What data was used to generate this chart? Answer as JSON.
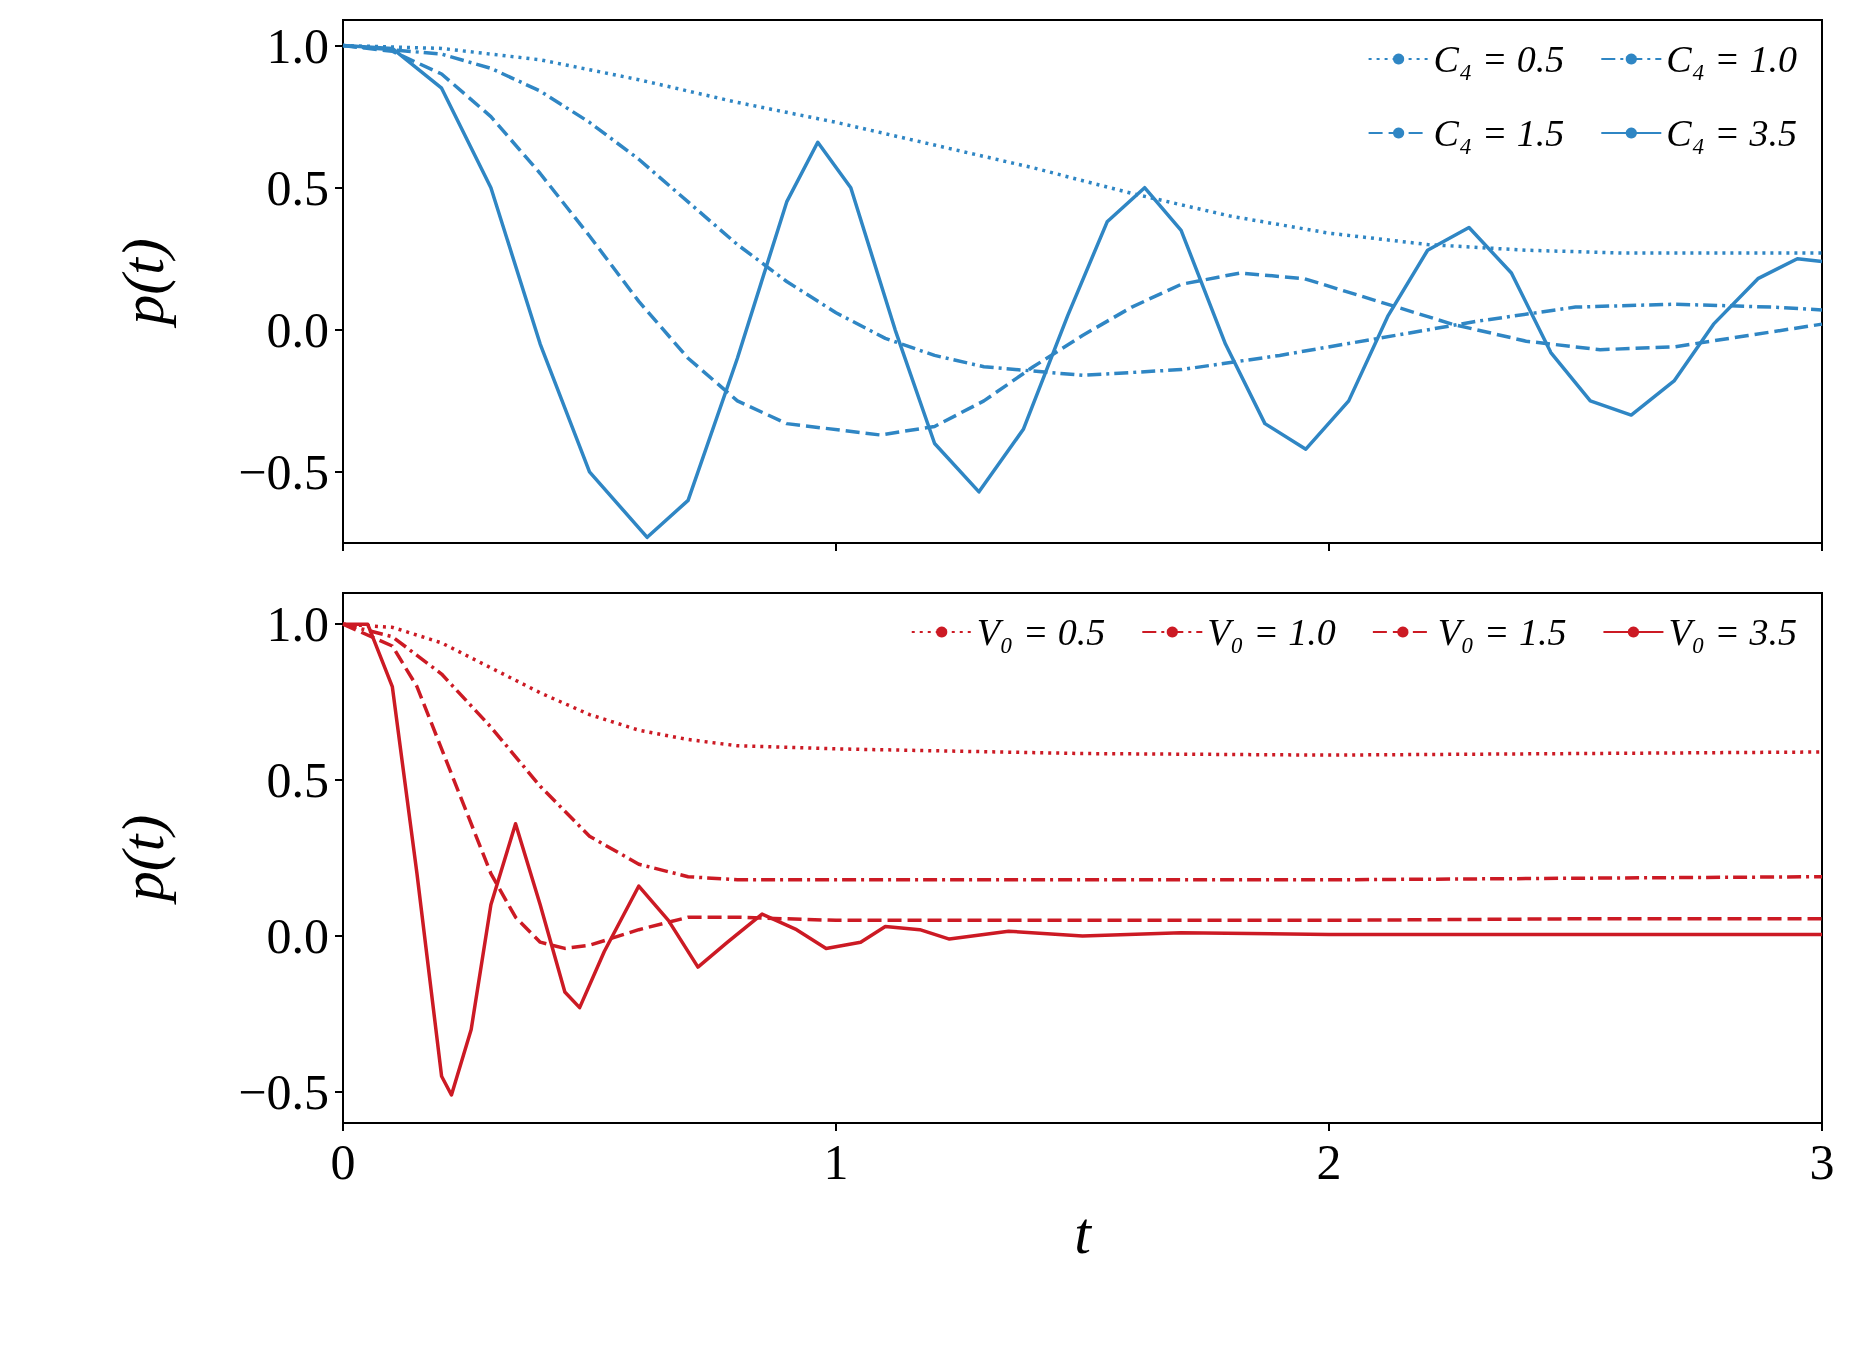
{
  "chart_data": [
    {
      "type": "line",
      "ylabel": "p(t)",
      "xlim": [
        0,
        3
      ],
      "xticks": [
        0,
        1,
        2,
        3
      ],
      "ylim": [
        -0.75,
        1.09
      ],
      "yticks": [
        {
          "value": -0.5,
          "label": "−0.5"
        },
        {
          "value": 0,
          "label": "0.0"
        },
        {
          "value": 0.5,
          "label": "0.5"
        },
        {
          "value": 1,
          "label": "1.0"
        }
      ],
      "tick_labels": "y",
      "grid": false,
      "legend": "top right",
      "marker": "none",
      "series": [
        {
          "name": "C₄ = 0.5",
          "color": "#2f86c4",
          "line_style": "dotted",
          "x": [
            0,
            0.2,
            0.4,
            0.6,
            0.8,
            1.0,
            1.2,
            1.4,
            1.6,
            1.8,
            2.0,
            2.2,
            2.4,
            2.6,
            2.8,
            3
          ],
          "values": [
            1,
            0.99,
            0.95,
            0.88,
            0.8,
            0.73,
            0.65,
            0.57,
            0.48,
            0.4,
            0.34,
            0.3,
            0.28,
            0.27,
            0.27,
            0.27
          ]
        },
        {
          "name": "C₄ = 1.0",
          "color": "#2f86c4",
          "line_style": "dashdot",
          "x": [
            0,
            0.2,
            0.3,
            0.4,
            0.5,
            0.6,
            0.7,
            0.8,
            0.9,
            1.0,
            1.1,
            1.2,
            1.3,
            1.5,
            1.7,
            1.9,
            2.1,
            2.3,
            2.5,
            2.7,
            2.9,
            3
          ],
          "values": [
            1,
            0.97,
            0.92,
            0.84,
            0.73,
            0.6,
            0.45,
            0.3,
            0.17,
            0.06,
            -0.03,
            -0.09,
            -0.13,
            -0.16,
            -0.14,
            -0.09,
            -0.03,
            0.03,
            0.08,
            0.09,
            0.08,
            0.07
          ]
        },
        {
          "name": "C₄ = 1.5",
          "color": "#2f86c4",
          "line_style": "dashed",
          "x": [
            0,
            0.1,
            0.2,
            0.3,
            0.4,
            0.5,
            0.6,
            0.7,
            0.8,
            0.9,
            1.09,
            1.2,
            1.3,
            1.4,
            1.5,
            1.6,
            1.7,
            1.82,
            1.95,
            2.1,
            2.25,
            2.4,
            2.55,
            2.7,
            2.85,
            3
          ],
          "values": [
            1,
            0.98,
            0.9,
            0.75,
            0.55,
            0.33,
            0.1,
            -0.1,
            -0.25,
            -0.33,
            -0.37,
            -0.34,
            -0.25,
            -0.13,
            -0.02,
            0.08,
            0.16,
            0.2,
            0.18,
            0.1,
            0.02,
            -0.04,
            -0.07,
            -0.06,
            -0.02,
            0.02
          ]
        },
        {
          "name": "C₄ = 3.5",
          "color": "#2f86c4",
          "line_style": "solid",
          "x": [
            0,
            0.1,
            0.2,
            0.3,
            0.4,
            0.5,
            0.617,
            0.7,
            0.8,
            0.9,
            0.963,
            1.03,
            1.12,
            1.2,
            1.29,
            1.38,
            1.47,
            1.55,
            1.626,
            1.7,
            1.79,
            1.87,
            1.953,
            2.04,
            2.12,
            2.2,
            2.284,
            2.37,
            2.45,
            2.53,
            2.613,
            2.7,
            2.78,
            2.87,
            2.95,
            3
          ],
          "values": [
            1,
            0.99,
            0.85,
            0.5,
            -0.05,
            -0.5,
            -0.73,
            -0.6,
            -0.1,
            0.45,
            0.66,
            0.5,
            0.0,
            -0.4,
            -0.57,
            -0.35,
            0.05,
            0.38,
            0.5,
            0.35,
            -0.05,
            -0.33,
            -0.42,
            -0.25,
            0.05,
            0.28,
            0.36,
            0.2,
            -0.08,
            -0.25,
            -0.3,
            -0.18,
            0.02,
            0.18,
            0.25,
            0.24
          ]
        }
      ]
    },
    {
      "type": "line",
      "ylabel": "p(t)",
      "xlabel": "t",
      "xlim": [
        0,
        3
      ],
      "xticks": [
        0,
        1,
        2,
        3
      ],
      "ylim": [
        -0.6,
        1.1
      ],
      "yticks": [
        {
          "value": -0.5,
          "label": "−0.5"
        },
        {
          "value": 0,
          "label": "0.0"
        },
        {
          "value": 0.5,
          "label": "0.5"
        },
        {
          "value": 1,
          "label": "1.0"
        }
      ],
      "grid": false,
      "legend": "top right",
      "marker": "none",
      "series": [
        {
          "name": "V₀ = 0.5",
          "color": "#cc1a24",
          "line_style": "dotted",
          "x": [
            0,
            0.1,
            0.2,
            0.3,
            0.4,
            0.5,
            0.6,
            0.7,
            0.8,
            1.0,
            1.5,
            2.0,
            2.5,
            3
          ],
          "values": [
            1,
            0.99,
            0.94,
            0.86,
            0.78,
            0.71,
            0.66,
            0.63,
            0.61,
            0.6,
            0.585,
            0.58,
            0.585,
            0.59
          ]
        },
        {
          "name": "V₀ = 1.0",
          "color": "#cc1a24",
          "line_style": "dashdot",
          "x": [
            0,
            0.1,
            0.2,
            0.3,
            0.4,
            0.5,
            0.6,
            0.7,
            0.8,
            1.0,
            1.5,
            2.0,
            2.5,
            3
          ],
          "values": [
            1,
            0.96,
            0.84,
            0.67,
            0.48,
            0.32,
            0.23,
            0.19,
            0.18,
            0.18,
            0.18,
            0.18,
            0.185,
            0.19
          ]
        },
        {
          "name": "V₀ = 1.5",
          "color": "#cc1a24",
          "line_style": "dashed",
          "x": [
            0,
            0.1,
            0.15,
            0.2,
            0.25,
            0.3,
            0.35,
            0.4,
            0.45,
            0.5,
            0.6,
            0.7,
            0.8,
            1.0,
            1.5,
            2.0,
            2.5,
            3
          ],
          "values": [
            1,
            0.93,
            0.8,
            0.6,
            0.4,
            0.2,
            0.06,
            -0.02,
            -0.04,
            -0.03,
            0.02,
            0.06,
            0.06,
            0.05,
            0.05,
            0.05,
            0.055,
            0.055
          ]
        },
        {
          "name": "V₀ = 3.5",
          "color": "#cc1a24",
          "line_style": "solid",
          "x": [
            0,
            0.05,
            0.1,
            0.15,
            0.2,
            0.22,
            0.26,
            0.3,
            0.35,
            0.4,
            0.45,
            0.48,
            0.53,
            0.6,
            0.66,
            0.72,
            0.78,
            0.85,
            0.92,
            0.98,
            1.05,
            1.1,
            1.17,
            1.23,
            1.35,
            1.5,
            1.7,
            2.0,
            2.5,
            3
          ],
          "values": [
            1,
            1,
            0.8,
            0.2,
            -0.45,
            -0.51,
            -0.3,
            0.1,
            0.36,
            0.1,
            -0.18,
            -0.23,
            -0.05,
            0.16,
            0.05,
            -0.1,
            -0.02,
            0.07,
            0.02,
            -0.04,
            -0.02,
            0.03,
            0.02,
            -0.01,
            0.015,
            0,
            0.01,
            0.005,
            0.005,
            0.005
          ]
        }
      ]
    }
  ]
}
